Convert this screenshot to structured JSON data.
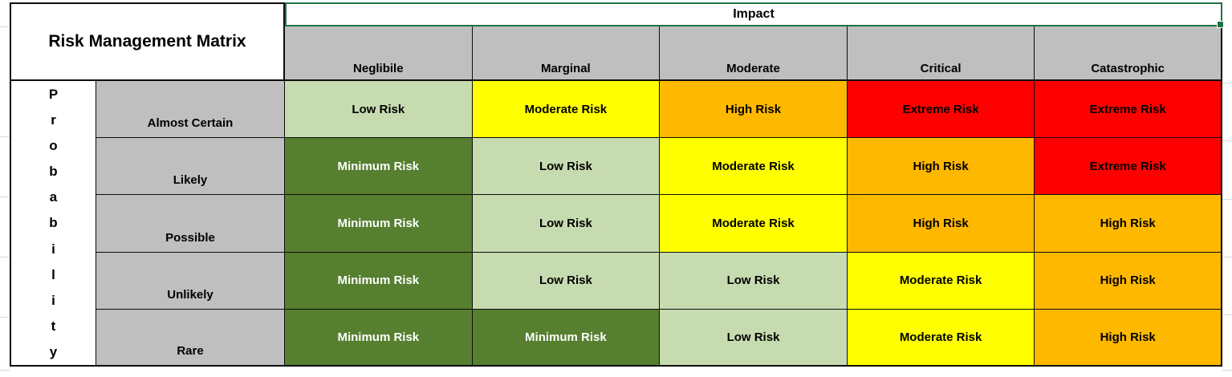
{
  "title_cell": {
    "text": "Risk Management Matrix"
  },
  "impact_header": {
    "text": "Impact"
  },
  "probability_header": {
    "word": "Probability",
    "letters": [
      "P",
      "r",
      "o",
      "b",
      "a",
      "b",
      "i",
      "l",
      "i",
      "t",
      "y"
    ]
  },
  "impact_levels": [
    "Neglibile",
    "Marginal",
    "Moderate",
    "Critical",
    "Catastrophic"
  ],
  "probability_levels": [
    "Almost Certain",
    "Likely",
    "Possible",
    "Unlikely",
    "Rare"
  ],
  "matrix": [
    [
      {
        "label": "Low Risk",
        "level": "low"
      },
      {
        "label": "Moderate Risk",
        "level": "moderate"
      },
      {
        "label": "High Risk",
        "level": "high"
      },
      {
        "label": "Extreme Risk",
        "level": "extreme"
      },
      {
        "label": "Extreme Risk",
        "level": "extreme"
      }
    ],
    [
      {
        "label": "Minimum Risk",
        "level": "minimum"
      },
      {
        "label": "Low Risk",
        "level": "low"
      },
      {
        "label": "Moderate Risk",
        "level": "moderate"
      },
      {
        "label": "High Risk",
        "level": "high"
      },
      {
        "label": "Extreme Risk",
        "level": "extreme"
      }
    ],
    [
      {
        "label": "Minimum Risk",
        "level": "minimum"
      },
      {
        "label": "Low Risk",
        "level": "low"
      },
      {
        "label": "Moderate Risk",
        "level": "moderate"
      },
      {
        "label": "High Risk",
        "level": "high"
      },
      {
        "label": "High Risk",
        "level": "high"
      }
    ],
    [
      {
        "label": "Minimum Risk",
        "level": "minimum"
      },
      {
        "label": "Low Risk",
        "level": "low"
      },
      {
        "label": "Low Risk",
        "level": "low"
      },
      {
        "label": "Moderate Risk",
        "level": "moderate"
      },
      {
        "label": "High Risk",
        "level": "high"
      }
    ],
    [
      {
        "label": "Minimum Risk",
        "level": "minimum"
      },
      {
        "label": "Minimum Risk",
        "level": "minimum"
      },
      {
        "label": "Low Risk",
        "level": "low"
      },
      {
        "label": "Moderate Risk",
        "level": "moderate"
      },
      {
        "label": "High Risk",
        "level": "high"
      }
    ]
  ],
  "colors": {
    "header_fill": "#bfbfbf",
    "minimum_risk": "#567f2f",
    "low_risk": "#c6dbb0",
    "moderate_risk": "#ffff00",
    "high_risk": "#ffb800",
    "extreme_risk": "#ff0000",
    "selection_border": "#217346",
    "grid_border": "#000000"
  },
  "chart_data": {
    "type": "heatmap",
    "title": "Risk Management Matrix",
    "xlabel": "Impact",
    "ylabel": "Probability",
    "columns": [
      "Neglibile",
      "Marginal",
      "Moderate",
      "Critical",
      "Catastrophic"
    ],
    "rows": [
      "Almost Certain",
      "Likely",
      "Possible",
      "Unlikely",
      "Rare"
    ],
    "cells": [
      [
        "Low Risk",
        "Moderate Risk",
        "High Risk",
        "Extreme Risk",
        "Extreme Risk"
      ],
      [
        "Minimum Risk",
        "Low Risk",
        "Moderate Risk",
        "High Risk",
        "Extreme Risk"
      ],
      [
        "Minimum Risk",
        "Low Risk",
        "Moderate Risk",
        "High Risk",
        "High Risk"
      ],
      [
        "Minimum Risk",
        "Low Risk",
        "Low Risk",
        "Moderate Risk",
        "High Risk"
      ],
      [
        "Minimum Risk",
        "Minimum Risk",
        "Low Risk",
        "Moderate Risk",
        "High Risk"
      ]
    ]
  }
}
